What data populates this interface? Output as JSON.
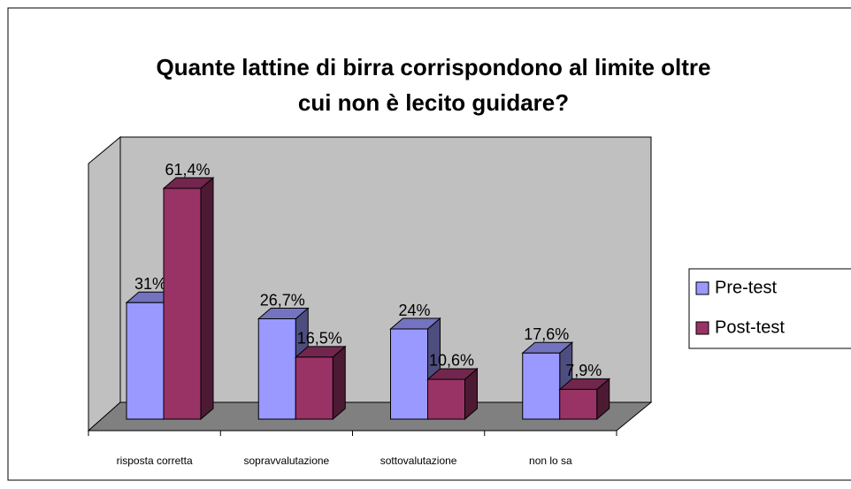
{
  "chart_data": {
    "type": "bar3d",
    "title": "Quante lattine di birra corrispondono al limite oltre cui non è lecito guidare?",
    "categories": [
      "risposta corretta",
      "sopravvalutazione",
      "sottovalutazione",
      "non lo sa"
    ],
    "series": [
      {
        "name": "Pre-test",
        "color": "#9999ff",
        "values": [
          31,
          26.7,
          24,
          17.6
        ],
        "value_labels": [
          "31%",
          "26,7%",
          "24%",
          "17,6%"
        ]
      },
      {
        "name": "Post-test",
        "color": "#993366",
        "values": [
          61.4,
          16.5,
          10.6,
          7.9
        ],
        "value_labels": [
          "61,4%",
          "16,5%",
          "10,6%",
          "7,9%"
        ]
      }
    ],
    "legend": "right"
  }
}
